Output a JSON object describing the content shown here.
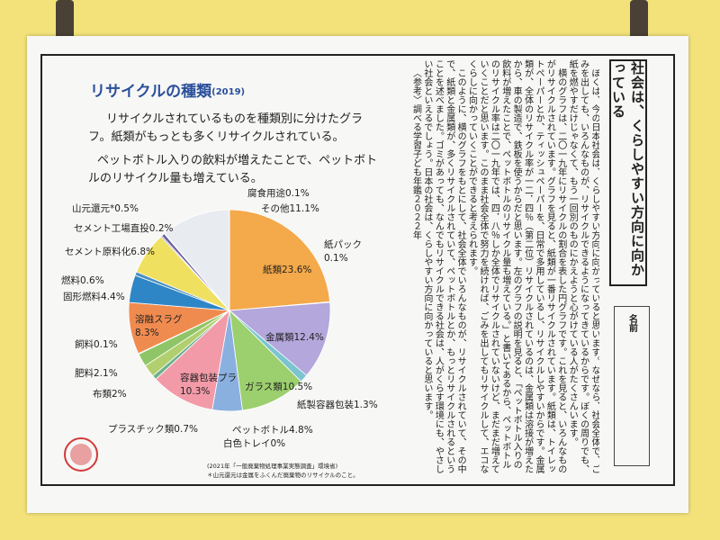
{
  "chart_data": {
    "type": "pie",
    "title": "リサイクルの種類",
    "subtitle": "(2019)",
    "description": [
      "リサイクルされているものを種類別に分けたグラフ。紙類がもっとも多くリサイクルされている。",
      "ペットボトル入りの飲料が増えたことで、ペットボトルのリサイクル量も増えている。"
    ],
    "categories": [
      "紙類",
      "紙パック",
      "金属類",
      "紙製容器包装",
      "ガラス類",
      "ペットボトル",
      "白色トレイ",
      "容器包装プラ",
      "プラスチック類",
      "布類",
      "肥料",
      "飼料",
      "溶融スラグ",
      "固形燃料",
      "燃料",
      "セメント原料化",
      "セメント工場直投",
      "山元還元*",
      "腐食用途",
      "その他"
    ],
    "values": [
      23.6,
      0.1,
      12.4,
      1.3,
      10.5,
      4.8,
      0,
      10.3,
      0.7,
      2,
      2.1,
      0.1,
      8.3,
      4.4,
      0.6,
      6.8,
      0.2,
      0.5,
      0.1,
      11.1
    ],
    "value_labels": [
      "23.6%",
      "0.1%",
      "12.4%",
      "1.3%",
      "10.5%",
      "4.8%",
      "0%",
      "10.3%",
      "0.7%",
      "2%",
      "2.1%",
      "0.1%",
      "8.3%",
      "4.4%",
      "0.6%",
      "6.8%",
      "0.2%",
      "0.5%",
      "0.1%",
      "11.1%"
    ],
    "colors": [
      "#f4a94a",
      "#cfcfcf",
      "#b3a7dc",
      "#7bc4d0",
      "#9ccf6e",
      "#8ab0e0",
      "#ffffff",
      "#f29aa8",
      "#6fb08a",
      "#b1cf6e",
      "#8fc567",
      "#e0d040",
      "#f08b4f",
      "#2f86c6",
      "#4a90c0",
      "#f0e060",
      "#3a60b0",
      "#6a5aa0",
      "#9a4aa0",
      "#e8ecf0"
    ],
    "notes": [
      "(2021年「一般廃棄物処理事業実態調査」環境省)",
      "＊山元還元は金属をふくんだ廃棄物のリサイクルのこと。"
    ]
  },
  "essay": {
    "title": "社会は、くらしやすい方向に向かっている",
    "name_label": "名前",
    "paragraphs": [
      "ぼくは、今の日本社会は、くらしやすい方向に向かっていると思います。なぜなら、社会全体で、ごみを出しても、いろんなものが、リサイクルできるようになってきているからです。ぼくの周りでも、紙を燃やすだけじゃなくて、もう一回別のものにかえようと心がけている人がたくさんいます。",
      "横のグラフは、二〇一九年にリサイクルの割合を表した円グラフです。これを見ると、いろんなものがリサイクルされています。グラフを見ると、紙類が一番リサイクルされています。紙類は、トイレットペーパーとか、ティッシュペーパーを、日常で多用しているし、リサイクルしやすいからです。金属類が、全体のリサイクル率が一二．四％（第二位）リサイクルされているのは、金属類は溶接が増えたから、車の製造で、鉄板を使うからだと思います。左のグラフの説明を見ると、「ペットボトル入りの飲料が増えたことで、ペットボトルのリサイクル量も増えている。」と書いてあるから、ペットボトルのリサイクル率は二〇一九年では、四．八％しか全体でリサイクルされていないけど、まだまだ増えていくことだと思います。このまま社会全体で努力を続ければ、ごみを出してもリサイクルして、エコなくらしに向かっていくことができると考えられます。",
      "このように、横のグラフをもとにして、社会全体でいろんなものが、リサイクルされていて、その中で、紙類と金属類が、多くリサイクルされていて、ペットボトルとか、もっとリサイクルされるということを述べました。ゴミがあっても、なんでもリサイクルできる社会は、人がくらす環境にも、やさしい社会といえるでしょう。日本の社会は、くらしやすい方向に向かっていると思います。"
    ],
    "reference": "〈参考〉調べる学習子ども年鑑２０２２年"
  }
}
